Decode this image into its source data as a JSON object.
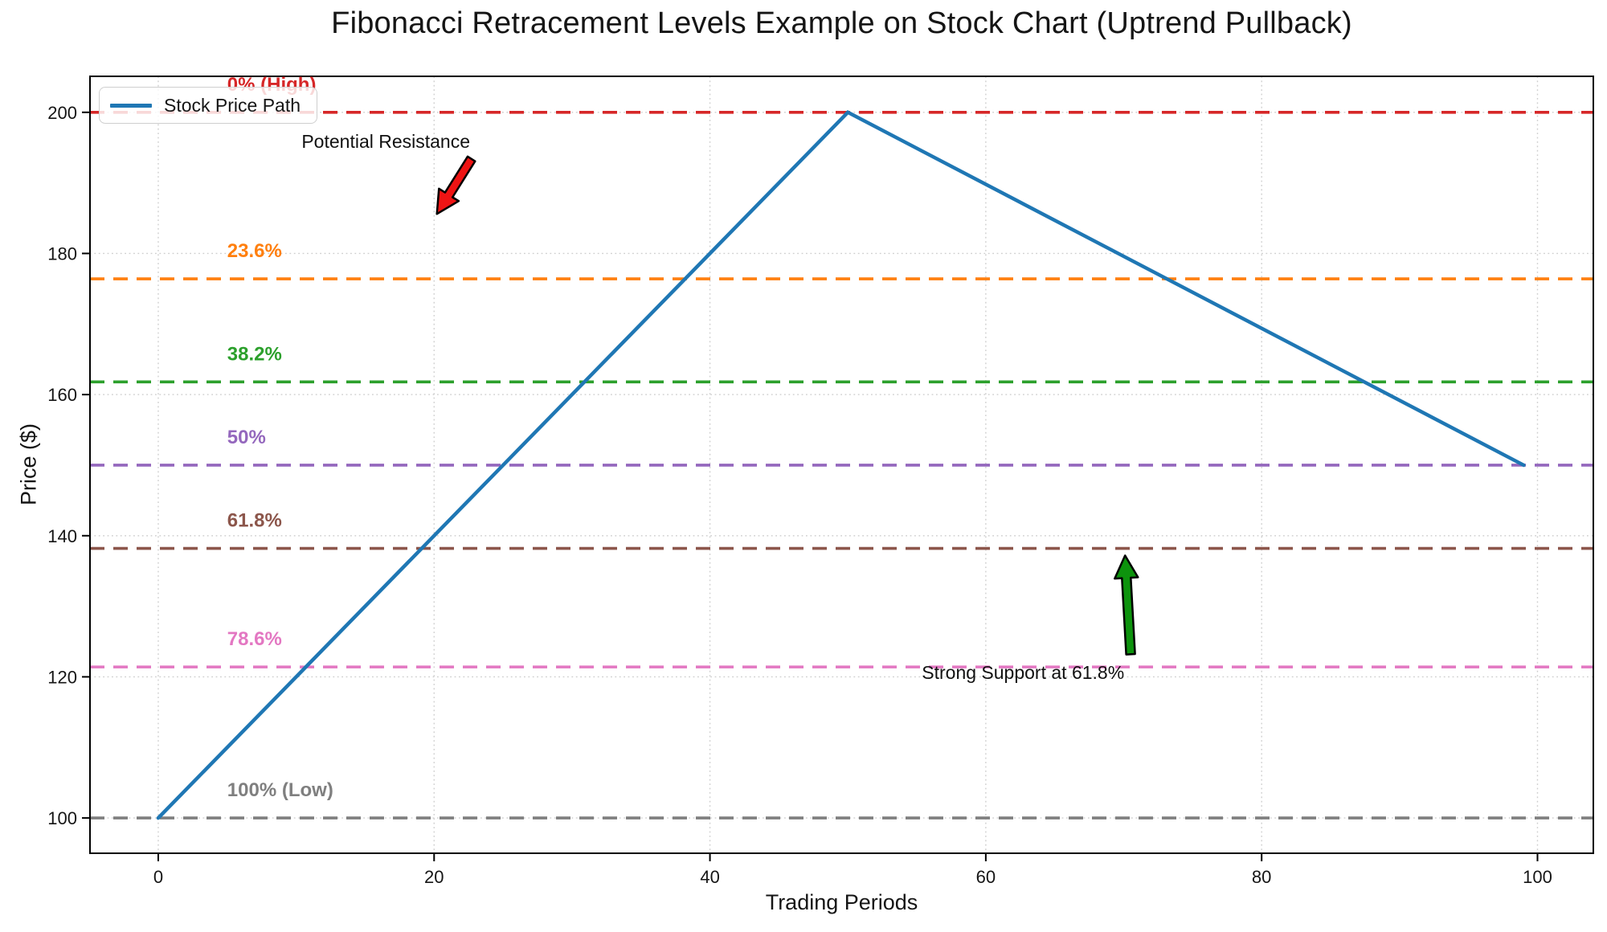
{
  "chart_data": {
    "type": "line",
    "title": "Fibonacci Retracement Levels Example on Stock Chart (Uptrend Pullback)",
    "xlabel": "Trading Periods",
    "ylabel": "Price ($)",
    "xlim": [
      -4.95,
      104.05
    ],
    "ylim": [
      95,
      205.1
    ],
    "xticks": [
      0,
      20,
      40,
      60,
      80,
      100
    ],
    "yticks": [
      100,
      120,
      140,
      160,
      180,
      200
    ],
    "grid": true,
    "legend": {
      "position": "upper left",
      "entries": [
        {
          "label": "Stock Price Path",
          "color": "#1f77b4"
        }
      ]
    },
    "series": [
      {
        "name": "Stock Price Path",
        "color": "#1f77b4",
        "linewidth": 4.5,
        "x": [
          0,
          50,
          99
        ],
        "y": [
          100,
          200,
          150
        ]
      }
    ],
    "fib_levels": [
      {
        "label": "0% (High)",
        "price": 200.0,
        "color": "#d62728"
      },
      {
        "label": "23.6%",
        "price": 176.4,
        "color": "#ff7f0e"
      },
      {
        "label": "38.2%",
        "price": 161.8,
        "color": "#2ca02c"
      },
      {
        "label": "50%",
        "price": 150.0,
        "color": "#9467bd"
      },
      {
        "label": "61.8%",
        "price": 138.2,
        "color": "#8c564b"
      },
      {
        "label": "78.6%",
        "price": 121.4,
        "color": "#e377c2"
      },
      {
        "label": "100% (Low)",
        "price": 100.0,
        "color": "#7f7f7f"
      }
    ],
    "fib_label_x": 5,
    "annotations": [
      {
        "text": "Potential Resistance",
        "x": 16.5,
        "y": 195.9,
        "color": "#111111",
        "arrow": {
          "from_x": 22.7,
          "from_y": 193.4,
          "to_x": 20.2,
          "to_y": 185.6,
          "color": "#ee1414"
        }
      },
      {
        "text": "Strong Support at 61.8%",
        "x": 62.7,
        "y": 120.6,
        "color": "#111111",
        "arrow": {
          "from_x": 70.5,
          "from_y": 123.2,
          "to_x": 70.1,
          "to_y": 137.2,
          "color": "#0d930d"
        }
      }
    ]
  }
}
